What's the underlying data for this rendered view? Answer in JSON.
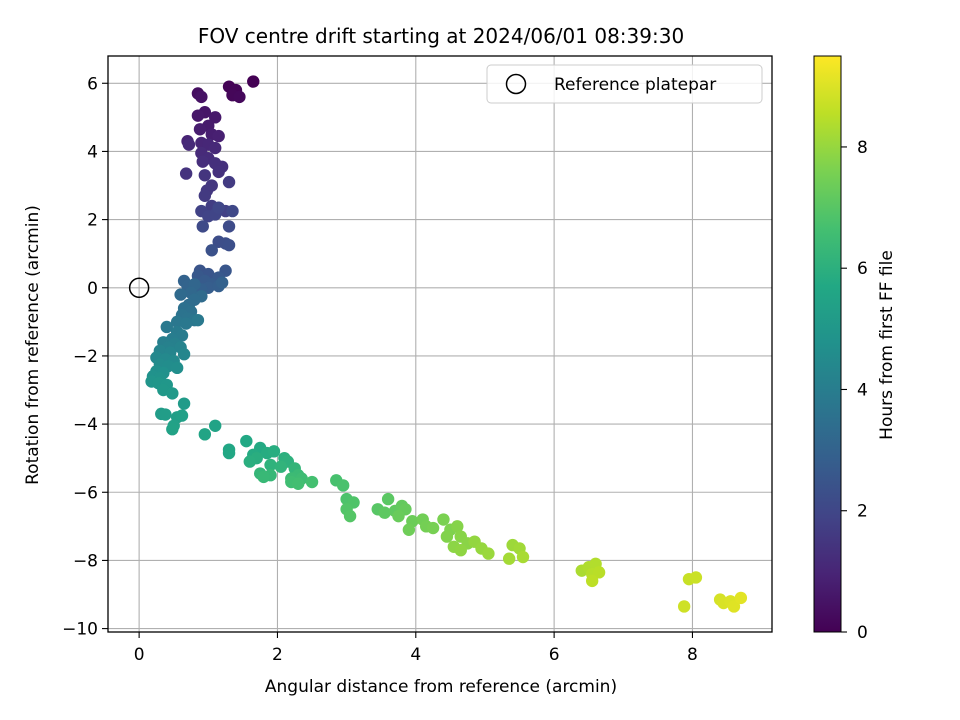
{
  "chart_data": {
    "type": "scatter",
    "title": "FOV centre drift starting at 2024/06/01 08:39:30",
    "xlabel": "Angular distance from reference (arcmin)",
    "ylabel": "Rotation from reference (arcmin)",
    "xlim": [
      -0.45,
      9.15
    ],
    "ylim": [
      -10.1,
      6.8
    ],
    "xticks": [
      0,
      2,
      4,
      6,
      8
    ],
    "yticks": [
      -10,
      -8,
      -6,
      -4,
      -2,
      0,
      2,
      4,
      6
    ],
    "grid": true,
    "legend": {
      "position": "top-right",
      "entries": [
        "Reference platepar"
      ]
    },
    "reference_point": {
      "x": 0,
      "y": 0,
      "label": "Reference platepar"
    },
    "colorbar": {
      "label": "Hours from first FF file",
      "min": 0,
      "max": 9.5,
      "ticks": [
        0,
        2,
        4,
        6,
        8
      ],
      "colormap": "viridis"
    },
    "points": [
      [
        1.65,
        6.05,
        0.0
      ],
      [
        1.3,
        5.9,
        0.05
      ],
      [
        1.4,
        5.8,
        0.1
      ],
      [
        1.35,
        5.65,
        0.15
      ],
      [
        1.45,
        5.6,
        0.2
      ],
      [
        0.85,
        5.7,
        0.35
      ],
      [
        0.9,
        5.6,
        0.45
      ],
      [
        0.95,
        5.15,
        0.55
      ],
      [
        0.85,
        5.05,
        0.6
      ],
      [
        1.1,
        5.0,
        0.65
      ],
      [
        1.0,
        4.75,
        0.7
      ],
      [
        0.88,
        4.65,
        0.75
      ],
      [
        1.05,
        4.5,
        0.8
      ],
      [
        1.15,
        4.45,
        0.85
      ],
      [
        0.7,
        4.3,
        0.95
      ],
      [
        0.9,
        4.25,
        1.0
      ],
      [
        1.0,
        4.2,
        1.05
      ],
      [
        1.1,
        4.1,
        1.1
      ],
      [
        0.72,
        4.2,
        1.12
      ],
      [
        0.9,
        3.95,
        1.15
      ],
      [
        1.0,
        3.8,
        1.2
      ],
      [
        0.92,
        3.7,
        1.25
      ],
      [
        1.1,
        3.65,
        1.3
      ],
      [
        1.2,
        3.55,
        1.32
      ],
      [
        1.15,
        3.4,
        1.35
      ],
      [
        0.68,
        3.35,
        1.4
      ],
      [
        0.95,
        3.3,
        1.45
      ],
      [
        1.05,
        3.0,
        1.5
      ],
      [
        0.98,
        2.85,
        1.55
      ],
      [
        0.95,
        2.7,
        1.6
      ],
      [
        1.3,
        3.1,
        1.62
      ],
      [
        1.05,
        2.4,
        1.7
      ],
      [
        1.15,
        2.3,
        1.75
      ],
      [
        1.25,
        2.25,
        1.8
      ],
      [
        0.9,
        2.25,
        1.85
      ],
      [
        1.0,
        2.1,
        1.9
      ],
      [
        1.1,
        2.15,
        1.95
      ],
      [
        1.15,
        2.35,
        2.0
      ],
      [
        1.35,
        2.25,
        2.05
      ],
      [
        0.92,
        1.8,
        2.1
      ],
      [
        1.3,
        1.8,
        2.15
      ],
      [
        1.15,
        1.35,
        2.2
      ],
      [
        1.25,
        1.3,
        2.25
      ],
      [
        1.3,
        1.25,
        2.3
      ],
      [
        1.05,
        1.1,
        2.35
      ],
      [
        0.88,
        0.5,
        2.45
      ],
      [
        1.0,
        0.4,
        2.5
      ],
      [
        1.25,
        0.5,
        2.55
      ],
      [
        0.85,
        0.35,
        2.6
      ],
      [
        1.15,
        0.3,
        2.65
      ],
      [
        0.95,
        0.2,
        2.7
      ],
      [
        1.05,
        0.1,
        2.75
      ],
      [
        1.0,
        0.0,
        2.8
      ],
      [
        1.15,
        0.05,
        2.85
      ],
      [
        0.9,
        -0.05,
        2.9
      ],
      [
        1.2,
        0.15,
        2.95
      ],
      [
        0.65,
        0.2,
        3.0
      ],
      [
        0.7,
        0.05,
        3.05
      ],
      [
        0.8,
        0.1,
        3.1
      ],
      [
        0.75,
        -0.15,
        3.2
      ],
      [
        0.6,
        -0.2,
        3.25
      ],
      [
        0.9,
        -0.25,
        3.3
      ],
      [
        0.8,
        -0.35,
        3.35
      ],
      [
        0.72,
        -0.5,
        3.4
      ],
      [
        0.65,
        -0.6,
        3.5
      ],
      [
        0.75,
        -0.7,
        3.55
      ],
      [
        0.62,
        -0.8,
        3.6
      ],
      [
        0.7,
        -0.9,
        3.65
      ],
      [
        0.8,
        -0.95,
        3.7
      ],
      [
        0.55,
        -1.0,
        3.75
      ],
      [
        0.68,
        -1.05,
        3.8
      ],
      [
        0.85,
        -0.95,
        3.82
      ],
      [
        0.4,
        -1.15,
        3.85
      ],
      [
        0.55,
        -1.3,
        3.9
      ],
      [
        0.62,
        -1.4,
        3.95
      ],
      [
        0.48,
        -1.5,
        4.0
      ],
      [
        0.35,
        -1.6,
        4.05
      ],
      [
        0.52,
        -1.65,
        4.1
      ],
      [
        0.42,
        -1.75,
        4.15
      ],
      [
        0.6,
        -1.75,
        4.2
      ],
      [
        0.3,
        -1.85,
        4.25
      ],
      [
        0.45,
        -1.9,
        4.3
      ],
      [
        0.65,
        -1.95,
        4.35
      ],
      [
        0.25,
        -2.05,
        4.4
      ],
      [
        0.38,
        -2.1,
        4.45
      ],
      [
        0.5,
        -2.15,
        4.5
      ],
      [
        0.3,
        -2.25,
        4.55
      ],
      [
        0.42,
        -2.3,
        4.6
      ],
      [
        0.55,
        -2.35,
        4.65
      ],
      [
        0.25,
        -2.45,
        4.7
      ],
      [
        0.35,
        -2.5,
        4.75
      ],
      [
        0.2,
        -2.6,
        4.8
      ],
      [
        0.3,
        -2.65,
        4.85
      ],
      [
        0.18,
        -2.75,
        4.9
      ],
      [
        0.28,
        -2.8,
        4.95
      ],
      [
        0.4,
        -2.85,
        5.0
      ],
      [
        0.35,
        -3.0,
        5.05
      ],
      [
        0.48,
        -3.1,
        5.1
      ],
      [
        0.65,
        -3.4,
        5.15
      ],
      [
        0.32,
        -3.7,
        5.2
      ],
      [
        0.38,
        -3.72,
        5.25
      ],
      [
        0.55,
        -3.8,
        5.3
      ],
      [
        0.62,
        -3.75,
        5.35
      ],
      [
        0.5,
        -4.05,
        5.4
      ],
      [
        0.48,
        -4.15,
        5.45
      ],
      [
        1.1,
        -4.05,
        5.5
      ],
      [
        0.95,
        -4.3,
        5.55
      ],
      [
        1.3,
        -4.75,
        5.6
      ],
      [
        1.3,
        -4.85,
        5.65
      ],
      [
        1.55,
        -4.5,
        5.7
      ],
      [
        1.75,
        -4.7,
        5.75
      ],
      [
        1.65,
        -4.9,
        5.8
      ],
      [
        1.85,
        -4.85,
        5.85
      ],
      [
        1.95,
        -4.8,
        5.9
      ],
      [
        1.7,
        -5.0,
        5.92
      ],
      [
        1.6,
        -5.1,
        5.95
      ],
      [
        2.1,
        -5.0,
        6.0
      ],
      [
        2.15,
        -5.1,
        6.05
      ],
      [
        1.9,
        -5.2,
        6.1
      ],
      [
        2.05,
        -5.25,
        6.15
      ],
      [
        2.25,
        -5.3,
        6.2
      ],
      [
        1.75,
        -5.45,
        6.25
      ],
      [
        1.9,
        -5.5,
        6.3
      ],
      [
        1.8,
        -5.55,
        6.35
      ],
      [
        2.3,
        -5.5,
        6.4
      ],
      [
        2.2,
        -5.6,
        6.45
      ],
      [
        2.35,
        -5.6,
        6.5
      ],
      [
        2.2,
        -5.7,
        6.55
      ],
      [
        2.3,
        -5.75,
        6.6
      ],
      [
        2.5,
        -5.7,
        6.65
      ],
      [
        2.85,
        -5.65,
        6.7
      ],
      [
        2.95,
        -5.8,
        6.75
      ],
      [
        3.0,
        -6.2,
        6.8
      ],
      [
        3.1,
        -6.3,
        6.85
      ],
      [
        3.0,
        -6.5,
        6.9
      ],
      [
        3.05,
        -6.7,
        6.95
      ],
      [
        3.45,
        -6.5,
        7.0
      ],
      [
        3.6,
        -6.2,
        7.05
      ],
      [
        3.55,
        -6.6,
        7.1
      ],
      [
        3.7,
        -6.55,
        7.15
      ],
      [
        3.8,
        -6.4,
        7.2
      ],
      [
        3.85,
        -6.5,
        7.25
      ],
      [
        3.75,
        -6.7,
        7.3
      ],
      [
        3.95,
        -6.85,
        7.35
      ],
      [
        3.9,
        -7.1,
        7.4
      ],
      [
        4.1,
        -6.8,
        7.45
      ],
      [
        4.15,
        -7.0,
        7.5
      ],
      [
        4.25,
        -7.05,
        7.55
      ],
      [
        4.4,
        -6.8,
        7.6
      ],
      [
        4.5,
        -7.1,
        7.65
      ],
      [
        4.45,
        -7.3,
        7.7
      ],
      [
        4.6,
        -7.0,
        7.75
      ],
      [
        4.65,
        -7.3,
        7.8
      ],
      [
        4.75,
        -7.5,
        7.82
      ],
      [
        4.55,
        -7.6,
        7.85
      ],
      [
        4.65,
        -7.7,
        7.9
      ],
      [
        4.85,
        -7.45,
        7.95
      ],
      [
        4.95,
        -7.65,
        8.0
      ],
      [
        5.05,
        -7.8,
        8.05
      ],
      [
        5.4,
        -7.55,
        8.1
      ],
      [
        5.5,
        -7.65,
        8.15
      ],
      [
        5.35,
        -7.95,
        8.2
      ],
      [
        5.55,
        -7.9,
        8.25
      ],
      [
        6.4,
        -8.3,
        8.3
      ],
      [
        6.5,
        -8.2,
        8.35
      ],
      [
        6.6,
        -8.1,
        8.4
      ],
      [
        6.55,
        -8.4,
        8.45
      ],
      [
        6.65,
        -8.35,
        8.5
      ],
      [
        6.55,
        -8.6,
        8.55
      ],
      [
        7.95,
        -8.55,
        8.7
      ],
      [
        8.05,
        -8.5,
        8.75
      ],
      [
        7.88,
        -9.35,
        8.8
      ],
      [
        8.4,
        -9.15,
        8.9
      ],
      [
        8.45,
        -9.25,
        8.95
      ],
      [
        8.55,
        -9.2,
        9.0
      ],
      [
        8.6,
        -9.35,
        9.05
      ],
      [
        8.7,
        -9.1,
        9.1
      ]
    ]
  }
}
